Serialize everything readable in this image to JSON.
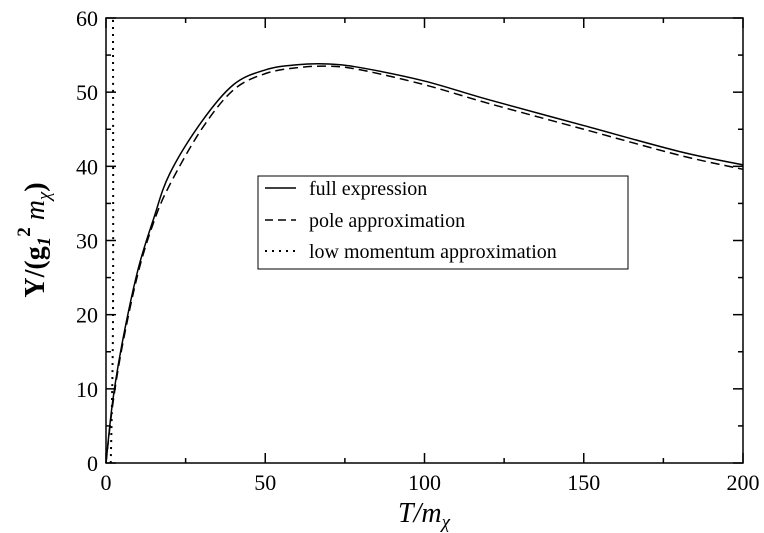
{
  "chart_data": {
    "type": "line",
    "xlabel": {
      "main": "T/m",
      "sub": "χ"
    },
    "ylabel": {
      "main": "Y/(g",
      "sub": "1",
      "sup": "2",
      "mid": " m",
      "sub2": "χ",
      "close": ")"
    },
    "xlim": [
      0,
      200
    ],
    "ylim": [
      0,
      60
    ],
    "x_ticks": [
      0,
      50,
      100,
      150,
      200
    ],
    "y_ticks": [
      0,
      10,
      20,
      30,
      40,
      50,
      60
    ],
    "x_tick_labels": [
      "0",
      "50",
      "100",
      "150",
      "200"
    ],
    "y_tick_labels": [
      "0",
      "10",
      "20",
      "30",
      "40",
      "50",
      "60"
    ],
    "grid": false,
    "legend_position": "center",
    "series": [
      {
        "name": "full expression",
        "style": "solid",
        "x": [
          0,
          2,
          5,
          10,
          15,
          20,
          30,
          40,
          50,
          60,
          70,
          80,
          100,
          120,
          150,
          180,
          200
        ],
        "y": [
          0,
          8,
          16,
          26,
          33,
          39,
          46,
          51,
          53,
          53.7,
          53.8,
          53.3,
          51.5,
          49,
          45.5,
          42,
          40.2
        ]
      },
      {
        "name": "pole approximation",
        "style": "dashed",
        "x": [
          0,
          2,
          5,
          10,
          15,
          20,
          30,
          40,
          50,
          60,
          70,
          80,
          100,
          120,
          150,
          180,
          200
        ],
        "y": [
          0,
          7.5,
          15.5,
          25.5,
          32.5,
          37.5,
          45,
          50.3,
          52.5,
          53.3,
          53.5,
          53,
          51,
          48.5,
          45,
          41.5,
          39.6
        ]
      },
      {
        "name": "low momentum approximation",
        "style": "dotted",
        "x": [
          1.5,
          2.2,
          2.2
        ],
        "y": [
          0,
          20,
          60
        ]
      }
    ]
  }
}
